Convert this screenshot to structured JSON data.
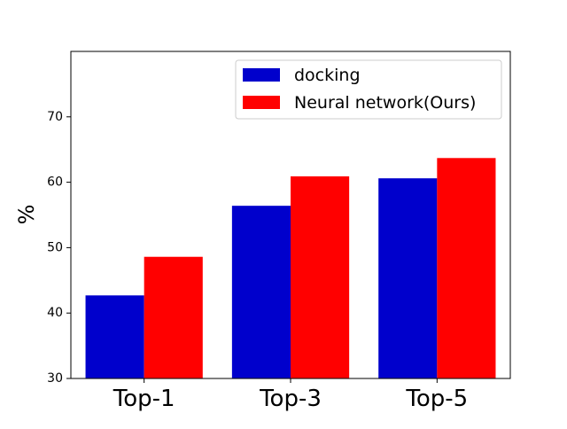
{
  "chart_data": {
    "type": "bar",
    "categories": [
      "Top-1",
      "Top-3",
      "Top-5"
    ],
    "series": [
      {
        "name": "docking",
        "values": [
          42.7,
          56.4,
          60.6
        ],
        "color": "#0000cc"
      },
      {
        "name": "Neural network(Ours)",
        "values": [
          48.6,
          60.9,
          63.7
        ],
        "color": "#ff0000"
      }
    ],
    "ylabel": "%",
    "xlabel": "",
    "title": "",
    "ylim": [
      30,
      80
    ],
    "yticks": [
      30,
      40,
      50,
      60,
      70
    ],
    "grid": false,
    "legend_position": "top-right"
  }
}
